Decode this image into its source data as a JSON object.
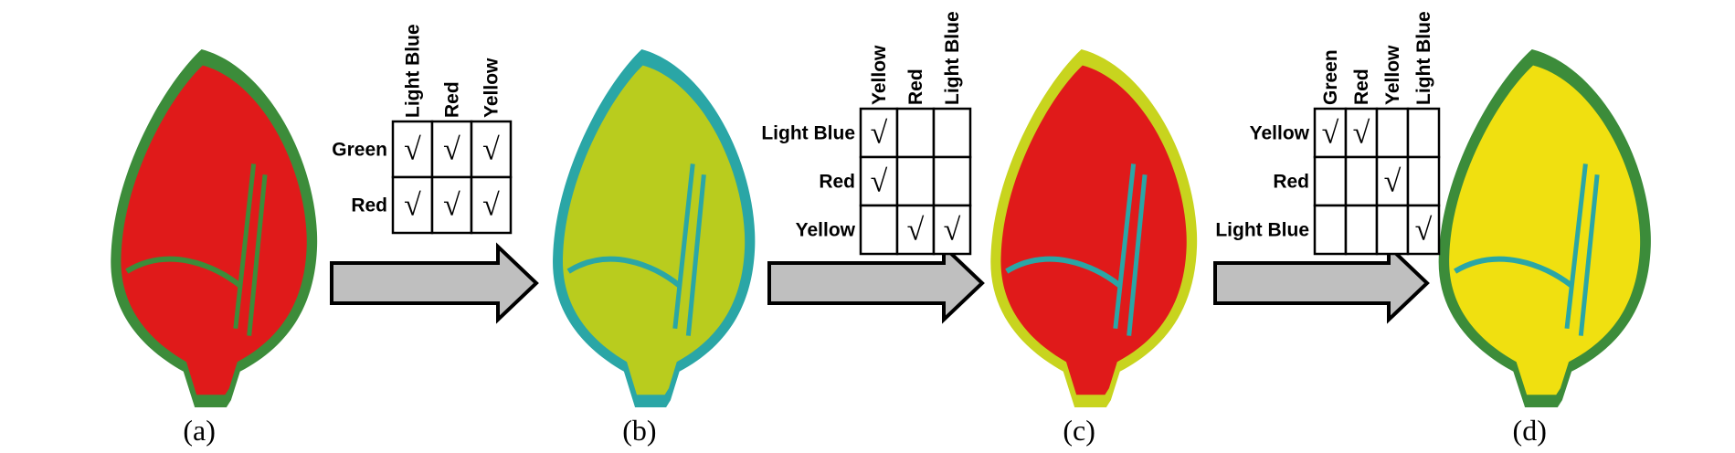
{
  "panels": [
    {
      "label": "(a)"
    },
    {
      "label": "(b)"
    },
    {
      "label": "(c)"
    },
    {
      "label": "(d)"
    }
  ],
  "tables": [
    {
      "columns": [
        "Light Blue",
        "Red",
        "Yellow"
      ],
      "rows": [
        {
          "label": "Green",
          "cells": [
            "√",
            "√",
            "√"
          ]
        },
        {
          "label": "Red",
          "cells": [
            "√",
            "√",
            "√"
          ]
        }
      ]
    },
    {
      "columns": [
        "Yellow",
        "Red",
        "Light Blue"
      ],
      "rows": [
        {
          "label": "Light Blue",
          "cells": [
            "√",
            null,
            null
          ]
        },
        {
          "label": "Red",
          "cells": [
            "√",
            null,
            null
          ]
        },
        {
          "label": "Yellow",
          "cells": [
            null,
            "√",
            "√"
          ]
        }
      ]
    },
    {
      "columns": [
        "Green",
        "Red",
        "Yellow",
        "Light Blue"
      ],
      "rows": [
        {
          "label": "Yellow",
          "cells": [
            "√",
            "√",
            null,
            null
          ]
        },
        {
          "label": "Red",
          "cells": [
            null,
            null,
            "√",
            null
          ]
        },
        {
          "label": "Light Blue",
          "cells": [
            null,
            null,
            null,
            "√"
          ]
        }
      ]
    }
  ]
}
